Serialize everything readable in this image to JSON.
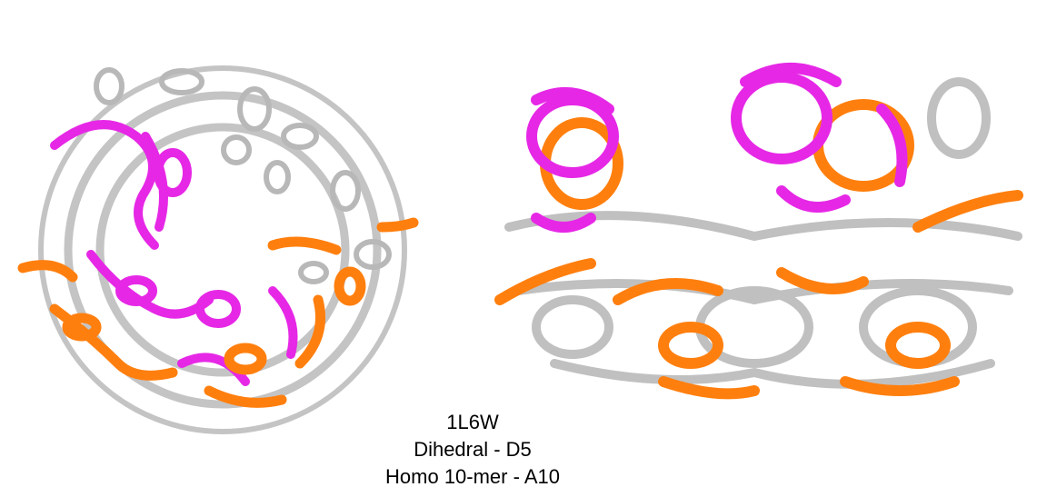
{
  "caption": {
    "line1": "1L6W",
    "line2": "Dihedral - D5",
    "line3": "Homo 10-mer - A10"
  },
  "colors": {
    "reference": "#c0c0c0",
    "chain_a": "#ff7f0e",
    "chain_b": "#e628e6",
    "background": "#ffffff"
  },
  "icons": [
    "protein-cartoon-top-view",
    "protein-cartoon-side-view"
  ]
}
